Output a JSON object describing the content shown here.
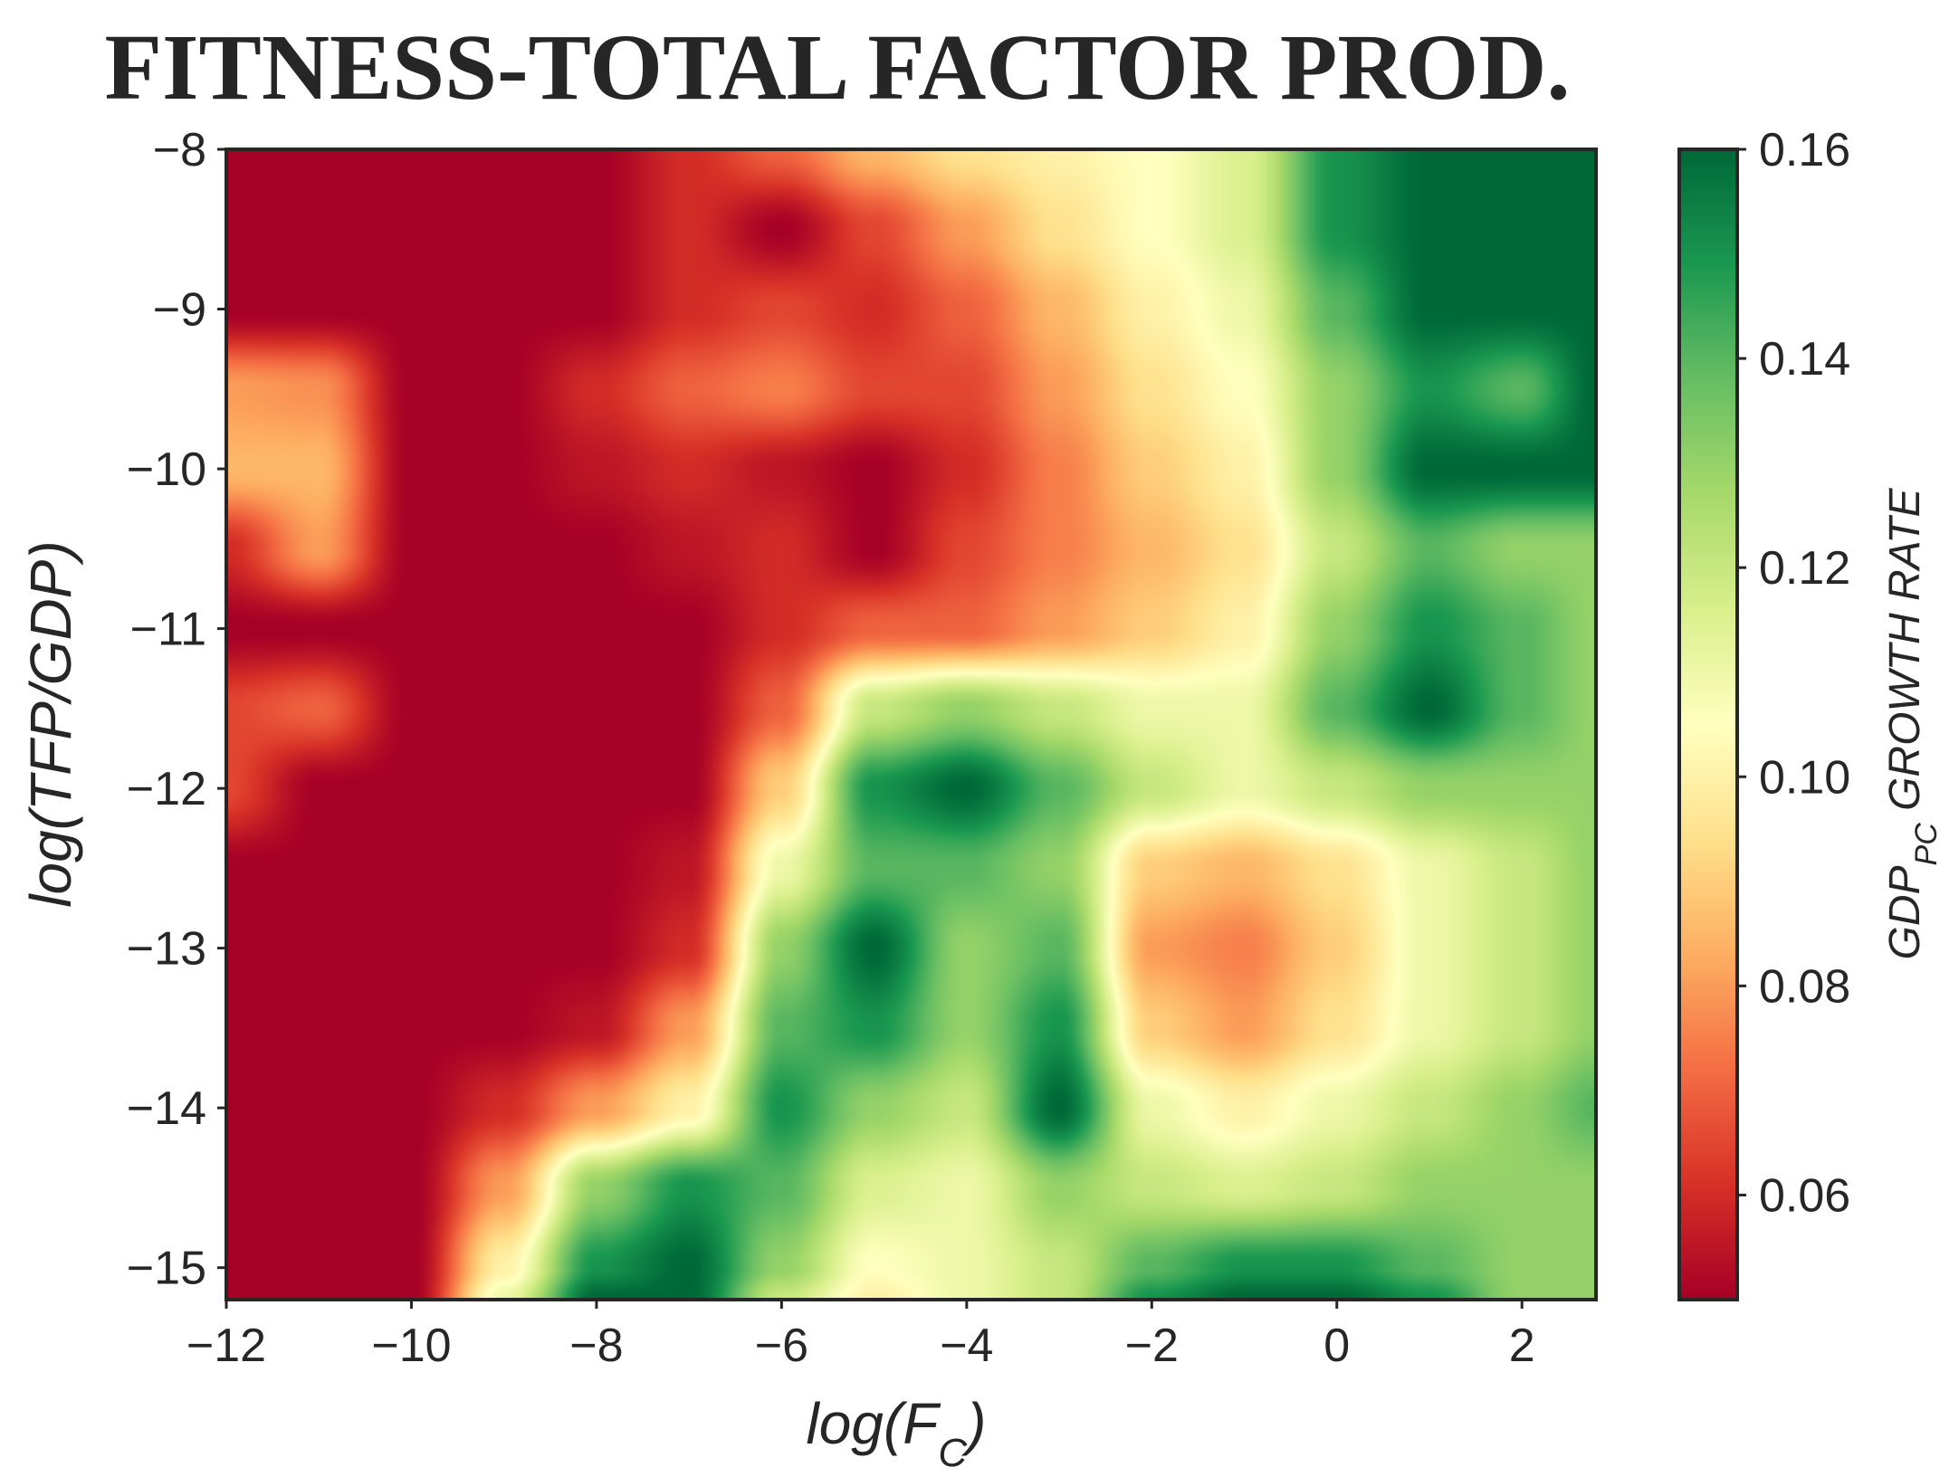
{
  "chart_data": {
    "type": "heatmap",
    "title": "FITNESS-TOTAL FACTOR PROD.",
    "xlabel": {
      "base": "log(F",
      "sub": "C",
      "tail": ")"
    },
    "ylabel": "log(TFP/GDP)",
    "colorbar_label": {
      "base": "GDP",
      "sub": "PC",
      "tail": " GROWTH RATE"
    },
    "xlim": [
      -12,
      2.8
    ],
    "ylim": [
      -15.2,
      -8
    ],
    "x_ticks": [
      -12,
      -10,
      -8,
      -6,
      -4,
      -2,
      0,
      2
    ],
    "x_tick_labels": [
      "−12",
      "−10",
      "−8",
      "−6",
      "−4",
      "−2",
      "0",
      "2"
    ],
    "y_ticks": [
      -8,
      -9,
      -10,
      -11,
      -12,
      -13,
      -14,
      -15
    ],
    "y_tick_labels": [
      "−8",
      "−9",
      "−10",
      "−11",
      "−12",
      "−13",
      "−14",
      "−15"
    ],
    "colorbar_range": [
      0.05,
      0.16
    ],
    "colorbar_ticks": [
      0.06,
      0.08,
      0.1,
      0.12,
      0.14,
      0.16
    ],
    "colorbar_tick_labels": [
      "0.06",
      "0.08",
      "0.10",
      "0.12",
      "0.14",
      "0.16"
    ],
    "colormap": [
      "#a50026",
      "#d73027",
      "#f46d43",
      "#fdae61",
      "#fee08b",
      "#ffffbf",
      "#d9ef8b",
      "#a6d96a",
      "#66bd63",
      "#1a9850",
      "#006837"
    ],
    "surface": {
      "description_kind": "smoothed field, data units",
      "x_grid": [
        -12,
        -11,
        -10,
        -9,
        -8,
        -7,
        -6,
        -5,
        -4,
        -3,
        -2,
        -1,
        0,
        1,
        2,
        2.8
      ],
      "y_grid": [
        -8,
        -8.5,
        -9,
        -9.5,
        -10,
        -10.5,
        -11,
        -11.5,
        -12,
        -12.5,
        -13,
        -13.5,
        -14,
        -14.5,
        -15,
        -15.2
      ],
      "z": [
        [
          0.05,
          0.05,
          0.05,
          0.05,
          0.05,
          0.06,
          0.07,
          0.085,
          0.095,
          0.1,
          0.105,
          0.115,
          0.15,
          0.16,
          0.16,
          0.16
        ],
        [
          0.05,
          0.05,
          0.05,
          0.05,
          0.05,
          0.06,
          0.05,
          0.065,
          0.08,
          0.095,
          0.105,
          0.115,
          0.15,
          0.16,
          0.16,
          0.16
        ],
        [
          0.05,
          0.05,
          0.05,
          0.05,
          0.05,
          0.06,
          0.065,
          0.06,
          0.07,
          0.085,
          0.1,
          0.11,
          0.14,
          0.16,
          0.16,
          0.16
        ],
        [
          0.08,
          0.078,
          0.05,
          0.05,
          0.06,
          0.07,
          0.075,
          0.065,
          0.065,
          0.08,
          0.095,
          0.105,
          0.13,
          0.15,
          0.14,
          0.16
        ],
        [
          0.085,
          0.085,
          0.05,
          0.05,
          0.055,
          0.06,
          0.055,
          0.05,
          0.06,
          0.075,
          0.09,
          0.1,
          0.13,
          0.16,
          0.16,
          0.16
        ],
        [
          0.06,
          0.08,
          0.05,
          0.05,
          0.05,
          0.055,
          0.06,
          0.05,
          0.065,
          0.075,
          0.085,
          0.095,
          0.12,
          0.14,
          0.13,
          0.13
        ],
        [
          0.05,
          0.05,
          0.05,
          0.05,
          0.05,
          0.05,
          0.06,
          0.07,
          0.07,
          0.08,
          0.09,
          0.1,
          0.13,
          0.15,
          0.14,
          0.13
        ],
        [
          0.065,
          0.07,
          0.05,
          0.05,
          0.05,
          0.05,
          0.07,
          0.12,
          0.13,
          0.12,
          0.11,
          0.11,
          0.14,
          0.16,
          0.14,
          0.13
        ],
        [
          0.065,
          0.05,
          0.05,
          0.05,
          0.05,
          0.05,
          0.09,
          0.15,
          0.16,
          0.14,
          0.12,
          0.11,
          0.12,
          0.13,
          0.13,
          0.13
        ],
        [
          0.05,
          0.05,
          0.05,
          0.05,
          0.05,
          0.055,
          0.11,
          0.14,
          0.14,
          0.13,
          0.09,
          0.085,
          0.095,
          0.11,
          0.12,
          0.13
        ],
        [
          0.05,
          0.05,
          0.05,
          0.05,
          0.05,
          0.06,
          0.13,
          0.16,
          0.13,
          0.14,
          0.08,
          0.075,
          0.09,
          0.11,
          0.12,
          0.13
        ],
        [
          0.05,
          0.05,
          0.05,
          0.05,
          0.055,
          0.08,
          0.14,
          0.15,
          0.13,
          0.15,
          0.09,
          0.08,
          0.095,
          0.11,
          0.12,
          0.13
        ],
        [
          0.05,
          0.05,
          0.05,
          0.06,
          0.08,
          0.1,
          0.15,
          0.13,
          0.12,
          0.16,
          0.11,
          0.1,
          0.11,
          0.12,
          0.13,
          0.14
        ],
        [
          0.05,
          0.05,
          0.05,
          0.08,
          0.13,
          0.15,
          0.14,
          0.115,
          0.11,
          0.13,
          0.12,
          0.115,
          0.12,
          0.13,
          0.13,
          0.13
        ],
        [
          0.05,
          0.05,
          0.05,
          0.1,
          0.15,
          0.16,
          0.13,
          0.105,
          0.11,
          0.12,
          0.14,
          0.15,
          0.15,
          0.14,
          0.13,
          0.13
        ],
        [
          0.05,
          0.05,
          0.05,
          0.11,
          0.16,
          0.16,
          0.12,
          0.1,
          0.11,
          0.12,
          0.15,
          0.16,
          0.16,
          0.15,
          0.13,
          0.13
        ]
      ]
    }
  }
}
